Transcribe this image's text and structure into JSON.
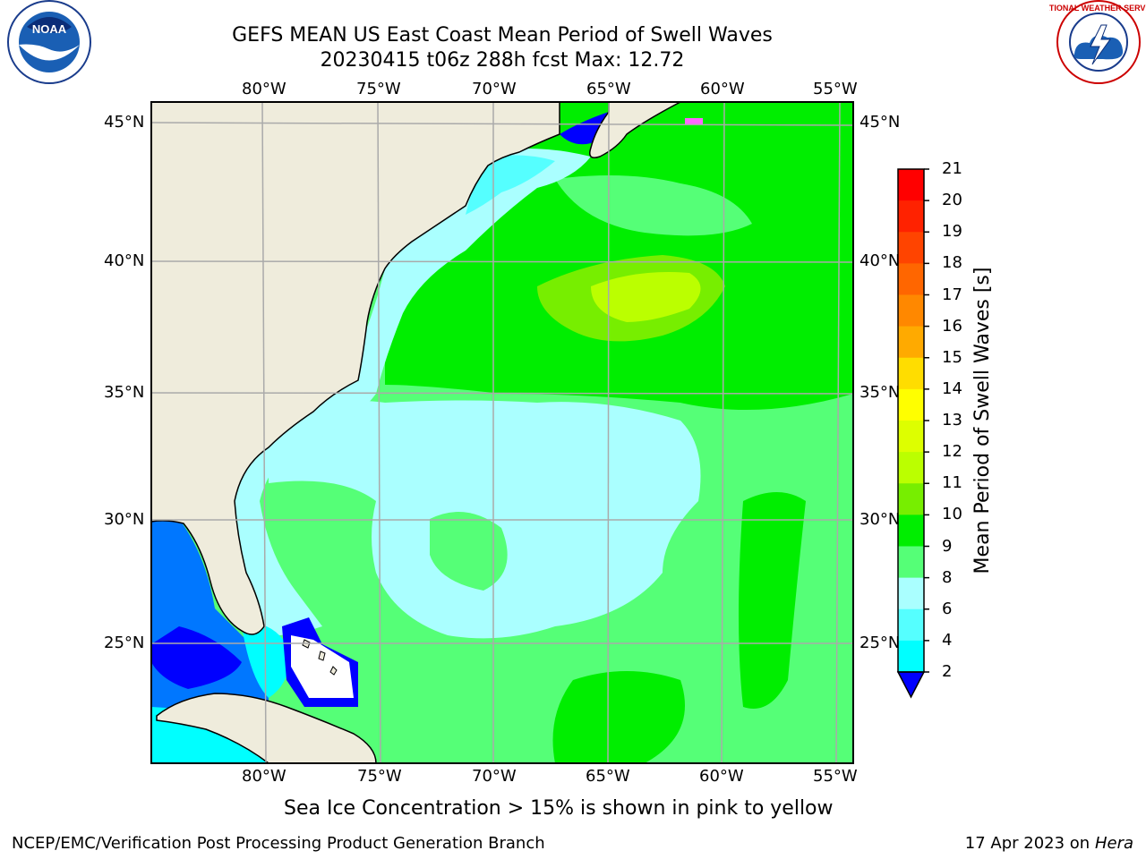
{
  "header": {
    "title": "GEFS MEAN US East Coast Mean Period of Swell Waves",
    "subtitle": "20230415 t06z 288h fcst   Max: 12.72"
  },
  "map": {
    "lon_labels": [
      "80°W",
      "75°W",
      "70°W",
      "65°W",
      "60°W",
      "55°W"
    ],
    "lat_labels": [
      "45°N",
      "40°N",
      "35°N",
      "30°N",
      "25°N"
    ],
    "lon_range": [
      -85,
      -55
    ],
    "lat_range": [
      20.5,
      45.8
    ]
  },
  "colorbar": {
    "label": "Mean Period of Swell Waves [s]",
    "ticks": [
      "21",
      "20",
      "19",
      "18",
      "17",
      "16",
      "15",
      "14",
      "13",
      "12",
      "11",
      "10",
      "9",
      "8",
      "6",
      "4",
      "2"
    ],
    "colors": [
      "#ff0000",
      "#ff2200",
      "#ff4400",
      "#ff6600",
      "#ff8800",
      "#ffaa00",
      "#ffdd00",
      "#ffff00",
      "#ddff00",
      "#bbff00",
      "#77ee00",
      "#00ee00",
      "#55ff77",
      "#aaffff",
      "#55ffff",
      "#00ffff",
      "#00ddff",
      "#0077ff",
      "#0000ff"
    ]
  },
  "logos": {
    "left_name": "NOAA",
    "right_text": "NATIONAL WEATHER SERVICE"
  },
  "notes": {
    "sea_ice": "Sea Ice Concentration > 15% is shown in pink to yellow"
  },
  "footer": {
    "left": "NCEP/EMC/Verification Post Processing Product Generation Branch",
    "right_date": "17 Apr 2023 on ",
    "right_system": "Hera"
  }
}
